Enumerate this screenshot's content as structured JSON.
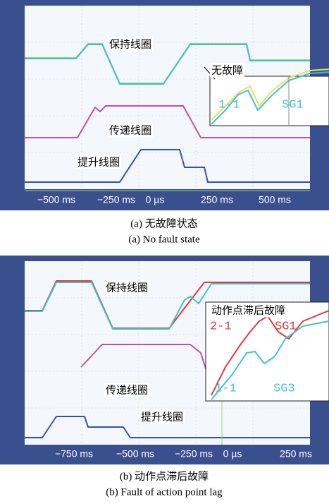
{
  "panels": [
    {
      "trace_labels": [
        "保持线圈",
        "传递线圈",
        "提升线圈"
      ],
      "inset_label": "无故障",
      "inset_texts": [
        "1-1",
        "SG1"
      ],
      "time_ticks": [
        "−500 ms",
        "−250 ms",
        "0 µs",
        "250 ms",
        "500 ms"
      ],
      "caption_zh": "(a) 无故障状态",
      "caption_en": "(a) No fault state"
    },
    {
      "trace_labels": [
        "保持线圈",
        "传递线圈",
        "提升线圈"
      ],
      "inset_label": "动作点滞后故障",
      "inset_texts": [
        "2-1",
        "SG1",
        "1-1",
        "SG3"
      ],
      "time_ticks": [
        "−750 ms",
        "−500 ms",
        "−250 ms",
        "0 µs",
        "250 ms"
      ],
      "caption_zh": "(b) 动作点滞后故障",
      "caption_en": "(b) Fault of action point lag"
    }
  ]
}
